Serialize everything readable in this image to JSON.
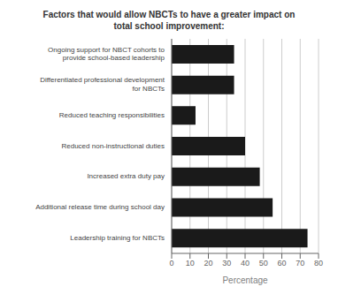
{
  "chart_data": {
    "type": "bar",
    "title": "Factors that would allow NBCTs to have a greater impact on\ntotal school improvement:",
    "categories": [
      "Leadership training for NBCTs",
      "Additional release time during school day",
      "Increased extra duty pay",
      "Reduced non-instructional duties",
      "Reduced teaching responsibilities",
      "Differentiated professional development\nfor NBCTs",
      "Ongoing support for NBCT cohorts to\nprovide school-based leadership"
    ],
    "values": [
      74,
      55,
      48,
      40,
      13,
      34,
      34
    ],
    "color": "#1a1a1a",
    "orientation": "horizontal",
    "xlabel": "Percentage",
    "xlim": [
      0,
      80
    ],
    "xticks": [
      0,
      10,
      20,
      30,
      40,
      50,
      60,
      70,
      80
    ],
    "grid": true
  }
}
